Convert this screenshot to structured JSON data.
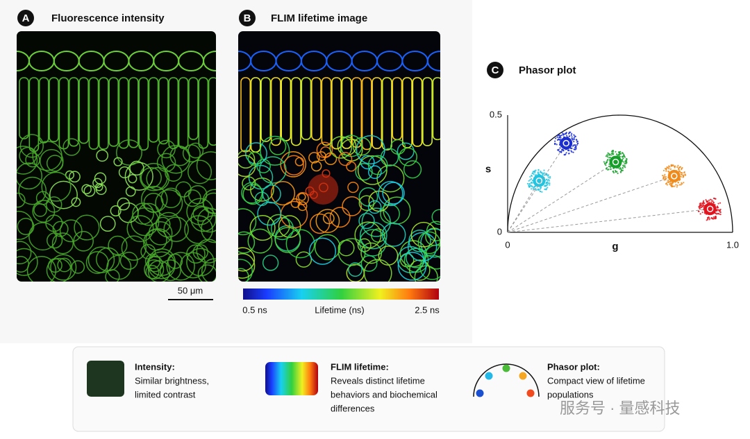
{
  "panel_a": {
    "letter": "A",
    "title": "Fluorescence intensity",
    "scale_bar": "50 μm"
  },
  "panel_b": {
    "letter": "B",
    "title": "FLIM lifetime image",
    "colorbar": {
      "min_label": "0.5 ns",
      "label": "Lifetime (ns)",
      "max_label": "2.5 ns"
    }
  },
  "panel_c": {
    "letter": "C",
    "title": "Phasor plot"
  },
  "chart_data": {
    "type": "scatter",
    "xlabel": "g",
    "ylabel": "s",
    "x": [
      0.14,
      0.26,
      0.48,
      0.74,
      0.9
    ],
    "values": [
      0.22,
      0.38,
      0.3,
      0.24,
      0.1
    ],
    "colors": [
      "#22c4e0",
      "#1a2ed0",
      "#16a02a",
      "#f08a1a",
      "#e0141e"
    ],
    "xlim": [
      0,
      1
    ],
    "ylim": [
      0,
      0.5
    ],
    "xticks": [
      0,
      {
        "value": 1,
        "label": "1.0"
      }
    ],
    "yticks": [
      0,
      0.5
    ]
  },
  "legend": {
    "items": [
      {
        "title": "Intensity:",
        "text": [
          "Similar brightness,",
          "limited contrast"
        ]
      },
      {
        "title": "FLIM lifetime:",
        "text": [
          "Reveals distinct lifetime",
          "behaviors and biochemical",
          "differences"
        ]
      },
      {
        "title": "Phasor plot:",
        "text": [
          "Compact view of lifetime",
          "populations"
        ]
      }
    ]
  },
  "watermark": "服务号 · 量感科技"
}
